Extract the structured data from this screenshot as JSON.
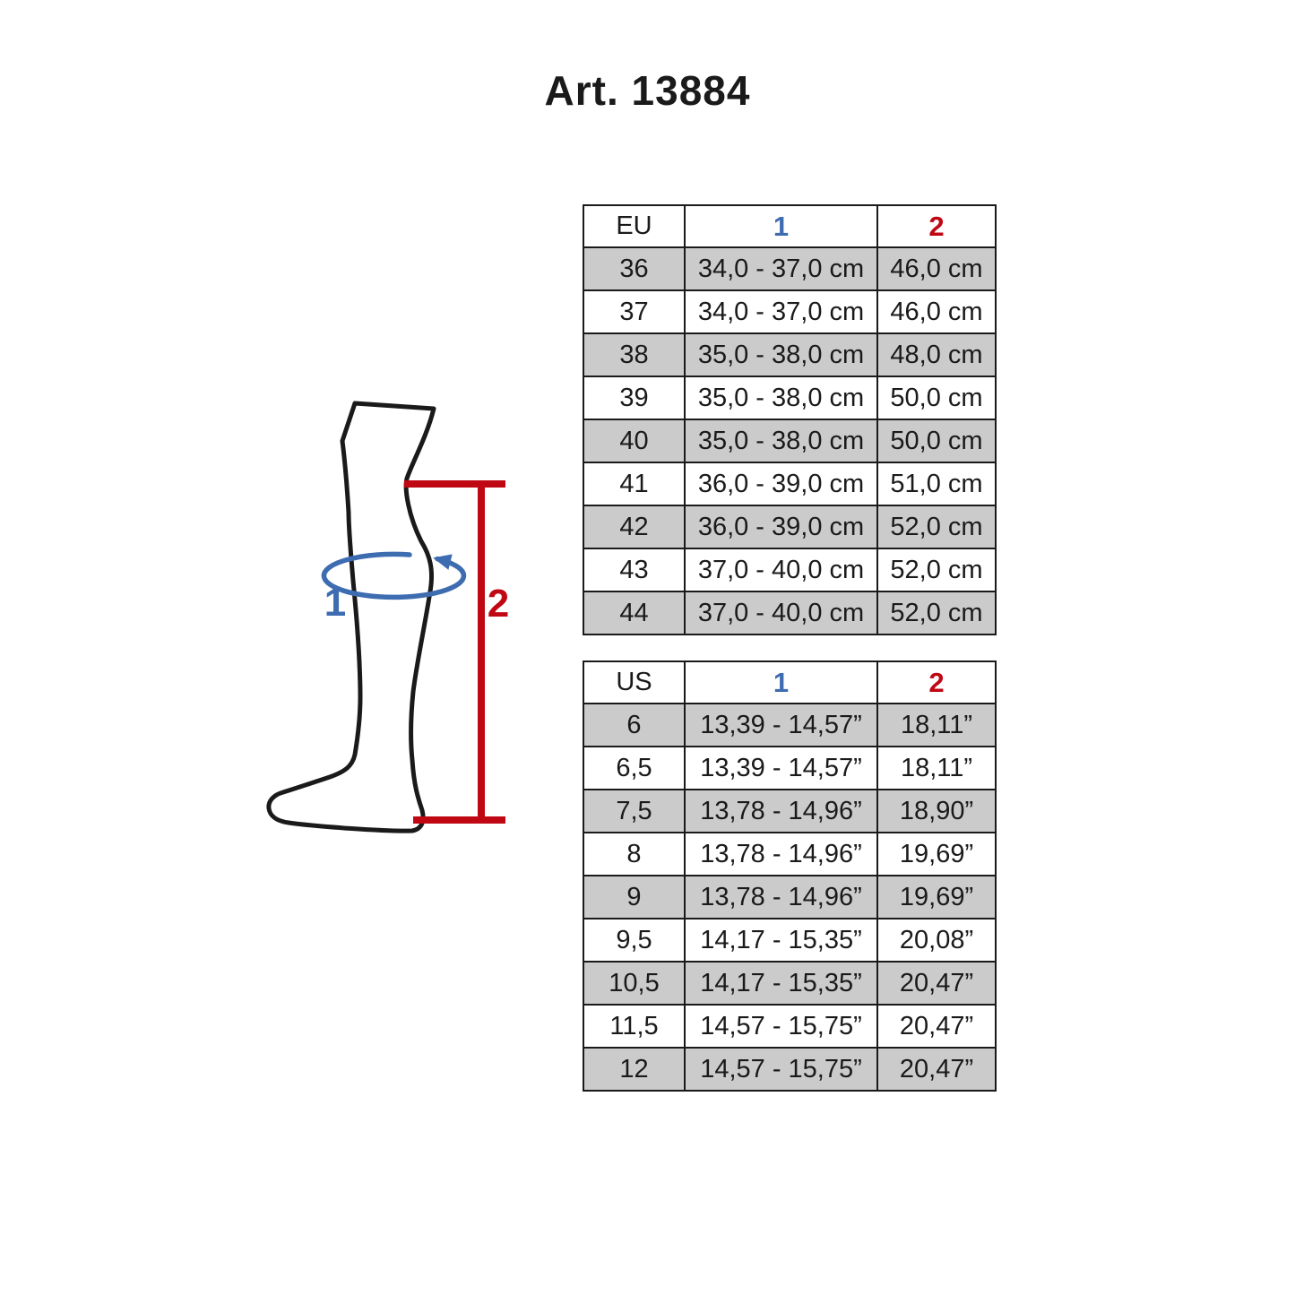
{
  "title": "Art. 13884",
  "colors": {
    "accent_blue": "#3D6CB0",
    "accent_red": "#C00714",
    "row_shade": "#CBCBCB",
    "border_color": "#1A1A1A"
  },
  "diagram": {
    "measure_1_label": "1",
    "measure_2_label": "2"
  },
  "eu_table": {
    "unit": "EU",
    "col1": "1",
    "col2": "2",
    "rows": [
      [
        "36",
        "34,0 - 37,0 cm",
        "46,0 cm"
      ],
      [
        "37",
        "34,0 - 37,0 cm",
        "46,0 cm"
      ],
      [
        "38",
        "35,0 - 38,0 cm",
        "48,0 cm"
      ],
      [
        "39",
        "35,0 - 38,0 cm",
        "50,0 cm"
      ],
      [
        "40",
        "35,0 - 38,0 cm",
        "50,0 cm"
      ],
      [
        "41",
        "36,0 - 39,0 cm",
        "51,0 cm"
      ],
      [
        "42",
        "36,0 - 39,0 cm",
        "52,0 cm"
      ],
      [
        "43",
        "37,0 - 40,0 cm",
        "52,0 cm"
      ],
      [
        "44",
        "37,0 - 40,0 cm",
        "52,0 cm"
      ]
    ]
  },
  "us_table": {
    "unit": "US",
    "col1": "1",
    "col2": "2",
    "rows": [
      [
        "6",
        "13,39 - 14,57”",
        "18,11”"
      ],
      [
        "6,5",
        "13,39 - 14,57”",
        "18,11”"
      ],
      [
        "7,5",
        "13,78 - 14,96”",
        "18,90”"
      ],
      [
        "8",
        "13,78 - 14,96”",
        "19,69”"
      ],
      [
        "9",
        "13,78 - 14,96”",
        "19,69”"
      ],
      [
        "9,5",
        "14,17 - 15,35”",
        "20,08”"
      ],
      [
        "10,5",
        "14,17 - 15,35”",
        "20,47”"
      ],
      [
        "11,5",
        "14,57 - 15,75”",
        "20,47”"
      ],
      [
        "12",
        "14,57 - 15,75”",
        "20,47”"
      ]
    ]
  }
}
